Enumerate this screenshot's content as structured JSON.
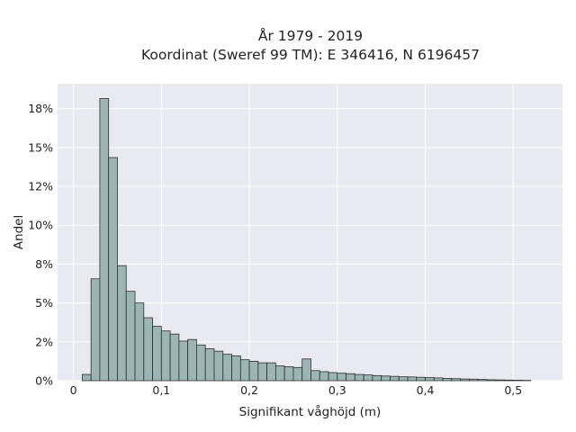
{
  "chart_data": {
    "type": "bar",
    "title_line1": "År 1979 - 2019",
    "title_line2": "Koordinat (Sweref 99 TM): E 346416, N 6196457",
    "xlabel": "Signifikant våghöjd (m)",
    "ylabel": "Andel",
    "xlim": [
      -0.018,
      0.556
    ],
    "ylim": [
      0,
      0.191
    ],
    "x_ticks": [
      {
        "value": 0,
        "label": "0"
      },
      {
        "value": 0.1,
        "label": "0,1"
      },
      {
        "value": 0.2,
        "label": "0,2"
      },
      {
        "value": 0.3,
        "label": "0,3"
      },
      {
        "value": 0.4,
        "label": "0,4"
      },
      {
        "value": 0.5,
        "label": "0,5"
      }
    ],
    "y_ticks": [
      {
        "value": 0,
        "label": "0%"
      },
      {
        "value": 0.025,
        "label": "2%"
      },
      {
        "value": 0.05,
        "label": "5%"
      },
      {
        "value": 0.075,
        "label": "8%"
      },
      {
        "value": 0.1,
        "label": "10%"
      },
      {
        "value": 0.125,
        "label": "12%"
      },
      {
        "value": 0.15,
        "label": "15%"
      },
      {
        "value": 0.175,
        "label": "18%"
      }
    ],
    "bin_start": 0.01,
    "bin_width": 0.01,
    "values": [
      0.004,
      0.0655,
      0.1815,
      0.1435,
      0.074,
      0.0575,
      0.05,
      0.0405,
      0.035,
      0.032,
      0.03,
      0.0255,
      0.0265,
      0.023,
      0.0205,
      0.019,
      0.017,
      0.016,
      0.0135,
      0.0125,
      0.0115,
      0.0115,
      0.0095,
      0.009,
      0.0085,
      0.014,
      0.0065,
      0.0058,
      0.0052,
      0.0048,
      0.0045,
      0.004,
      0.0037,
      0.0033,
      0.003,
      0.0028,
      0.0025,
      0.0024,
      0.0022,
      0.002,
      0.0018,
      0.0015,
      0.0013,
      0.0011,
      0.001,
      0.0008,
      0.0006,
      0.0005,
      0.0004,
      0.0003,
      0.0002
    ],
    "bar_fill": "#9bb5b4",
    "bar_stroke": "#2f2f2f",
    "plot_background": "#e9e9f1",
    "grid": true
  }
}
